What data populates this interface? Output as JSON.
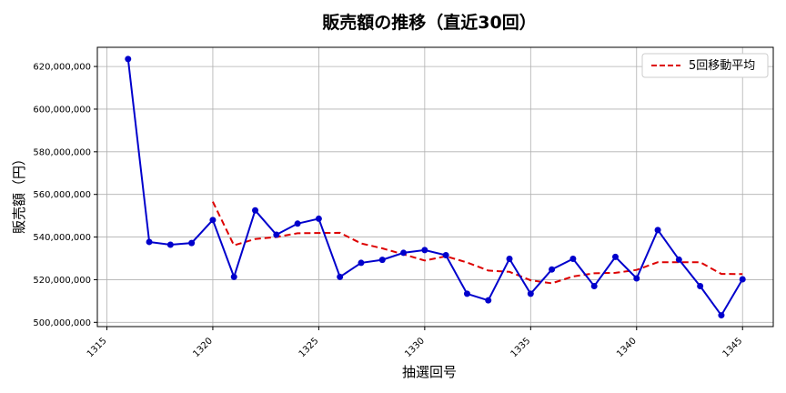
{
  "chart_data": {
    "type": "line",
    "title": "販売額の推移（直近30回）",
    "xlabel": "抽選回号",
    "ylabel": "販売額（円）",
    "xlim": [
      1314.55,
      1346.45
    ],
    "ylim": [
      498000000,
      629000000
    ],
    "x_ticks": [
      1315,
      1320,
      1325,
      1330,
      1335,
      1340,
      1345
    ],
    "y_ticks": [
      500000000,
      520000000,
      540000000,
      560000000,
      580000000,
      600000000,
      620000000
    ],
    "y_tick_labels": [
      "500,000,000",
      "520,000,000",
      "540,000,000",
      "560,000,000",
      "580,000,000",
      "600,000,000",
      "620,000,000"
    ],
    "grid": true,
    "legend_position": "top-right",
    "x": [
      1316,
      1317,
      1318,
      1319,
      1320,
      1321,
      1322,
      1323,
      1324,
      1325,
      1326,
      1327,
      1328,
      1329,
      1330,
      1331,
      1332,
      1333,
      1334,
      1335,
      1336,
      1337,
      1338,
      1339,
      1340,
      1341,
      1342,
      1343,
      1344,
      1345
    ],
    "series": [
      {
        "color": "#0000cc",
        "style": "solid-with-markers",
        "values": [
          623500000,
          537700000,
          536400000,
          537200000,
          548000000,
          521300000,
          552500000,
          541100000,
          546300000,
          548600000,
          521300000,
          527900000,
          529300000,
          532600000,
          533900000,
          531500000,
          513400000,
          510300000,
          529800000,
          513400000,
          524800000,
          529800000,
          517000000,
          530700000,
          520600000,
          543300000,
          529400000,
          517000000,
          503300000,
          520200000
        ]
      },
      {
        "name": "5回移動平均",
        "color": "#dd0000",
        "style": "dashed",
        "x": [
          1320,
          1321,
          1322,
          1323,
          1324,
          1325,
          1326,
          1327,
          1328,
          1329,
          1330,
          1331,
          1332,
          1333,
          1334,
          1335,
          1336,
          1337,
          1338,
          1339,
          1340,
          1341,
          1342,
          1343,
          1344,
          1345
        ],
        "values": [
          556600000,
          536100000,
          539100000,
          540000000,
          541800000,
          541900000,
          542000000,
          537000000,
          534700000,
          531900000,
          529000000,
          531000000,
          528100000,
          524300000,
          523700000,
          519700000,
          518300000,
          521500000,
          523000000,
          523200000,
          524600000,
          528200000,
          528200000,
          528200000,
          522700000,
          522600000
        ]
      }
    ]
  }
}
